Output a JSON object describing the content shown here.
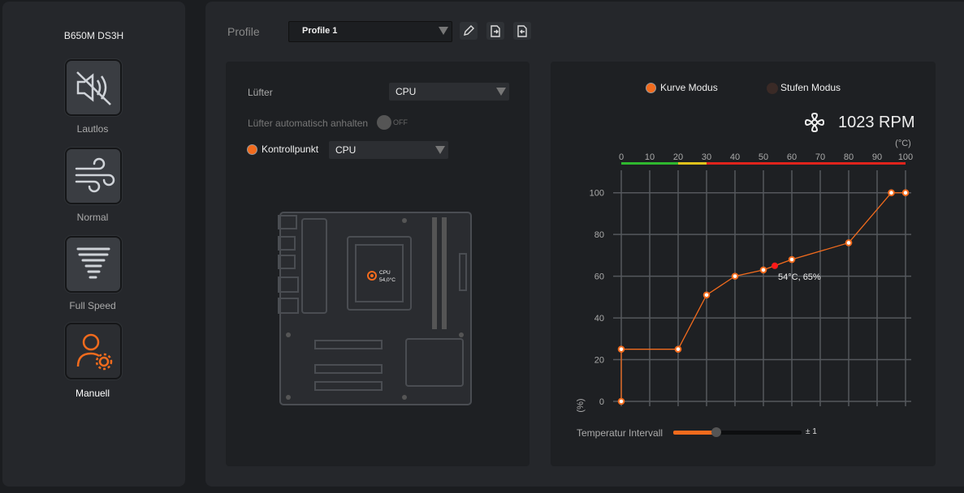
{
  "sidebar": {
    "title": "B650M DS3H",
    "modes": [
      "Lautlos",
      "Normal",
      "Full Speed",
      "Manuell"
    ]
  },
  "profile": {
    "label": "Profile",
    "value": "Profile 1"
  },
  "left_panel": {
    "fan_label": "Lüfter",
    "fan_value": "CPU",
    "auto_stop_label": "Lüfter automatisch anhalten",
    "auto_stop_state": "OFF",
    "checkpoint_label": "Kontrollpunkt",
    "checkpoint_value": "CPU",
    "board_cpu_label": "CPU",
    "board_cpu_temp": "54,0°C"
  },
  "right_panel": {
    "modes": [
      "Kurve Modus",
      "Stufen Modus"
    ],
    "rpm": "1023 RPM",
    "interval_label": "Temperatur Intervall",
    "interval_value": "± 1"
  },
  "chart_data": {
    "type": "line",
    "x_unit": "(°C)",
    "y_label": "(%)",
    "x": [
      0,
      0,
      20,
      30,
      40,
      50,
      60,
      80,
      95,
      100
    ],
    "values": [
      0,
      25,
      25,
      51,
      60,
      63,
      68,
      76,
      100,
      100
    ],
    "color": "#f26b1d",
    "xlim": [
      0,
      100
    ],
    "xticks": [
      0,
      10,
      20,
      30,
      40,
      50,
      60,
      70,
      80,
      90,
      100
    ],
    "ylim": [
      0,
      110
    ],
    "yticks": [
      0,
      20,
      40,
      60,
      80,
      100
    ],
    "grid": true,
    "current_point": {
      "x": 54,
      "y": 65,
      "label": "54°C, 65%",
      "color": "#ff1a1a"
    }
  }
}
